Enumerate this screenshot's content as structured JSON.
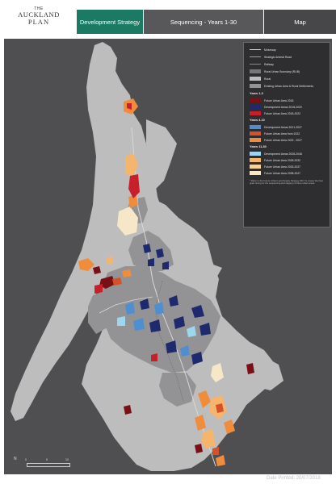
{
  "header": {
    "logo": {
      "line1": "THE",
      "line2": "AUCKLAND",
      "line3": "PLAN"
    },
    "tabs": [
      {
        "label": "Development Strategy",
        "active": true
      },
      {
        "label": "Sequencing - Years 1-30",
        "active": false
      },
      {
        "label": "Map",
        "active": false
      }
    ]
  },
  "legend": {
    "lines": [
      {
        "label": "Motorway",
        "color": "#cccccc"
      },
      {
        "label": "Strategic Arterial Road",
        "color": "#a0a0a0"
      },
      {
        "label": "Railway",
        "color": "#8a8a8a"
      }
    ],
    "areas": [
      {
        "label": "Rural Urban Boundary (RUB)",
        "color": "#777779"
      },
      {
        "label": "Rural",
        "color": "#bdbdbd"
      },
      {
        "label": "Existing Urban Area & Rural Settlements",
        "color": "#939395"
      }
    ],
    "groups": [
      {
        "heading": "Years 1-3",
        "items": [
          {
            "label": "Future Urban Area 2018",
            "color": "#7a1016"
          },
          {
            "label": "Development Areas 2018-2020",
            "color": "#1f2a6e"
          },
          {
            "label": "Future Urban Area 2018-2022",
            "color": "#c8202a"
          }
        ]
      },
      {
        "heading": "Years 4-10",
        "items": [
          {
            "label": "Development Areas 2021-2027",
            "color": "#4f8fd0"
          },
          {
            "label": "Future Urban Area from 2022",
            "color": "#d8502a"
          },
          {
            "label": "Future Urban Area 2023 - 2027",
            "color": "#f08d3c"
          }
        ]
      },
      {
        "heading": "Years 11-30",
        "items": [
          {
            "label": "Development Areas 2028-2048",
            "color": "#9fd6ef"
          },
          {
            "label": "Future Urban Area 2028-2032",
            "color": "#f5b56d"
          },
          {
            "label": "Future Urban Area 2033-2037",
            "color": "#f8d29c"
          },
          {
            "label": "Future Urban Area 2038-2047",
            "color": "#f6e7c8"
          }
        ]
      }
    ],
    "note": "* Refer to the Future Urban Land Supply Strategy 2017 to review the finer grain timing for the sequencing and staging of future urban areas."
  },
  "scale": {
    "labels": [
      "0",
      "5",
      "10"
    ]
  },
  "north": "N",
  "footer": {
    "date_label": "Date Printed:",
    "date_value": "20/07/2018"
  },
  "colors": {
    "sea": "#4f4f51",
    "rural": "#bdbdbd",
    "urban": "#939395",
    "fua_2018": "#7a1016",
    "dev_2018": "#1f2a6e",
    "fua_2018_2022": "#c8202a",
    "dev_2021": "#4f8fd0",
    "fua_2022": "#d8502a",
    "fua_2023": "#f08d3c",
    "dev_2028": "#9fd6ef",
    "fua_2028": "#f5b56d",
    "fua_2033": "#f8d29c",
    "fua_2038": "#f6e7c8"
  }
}
